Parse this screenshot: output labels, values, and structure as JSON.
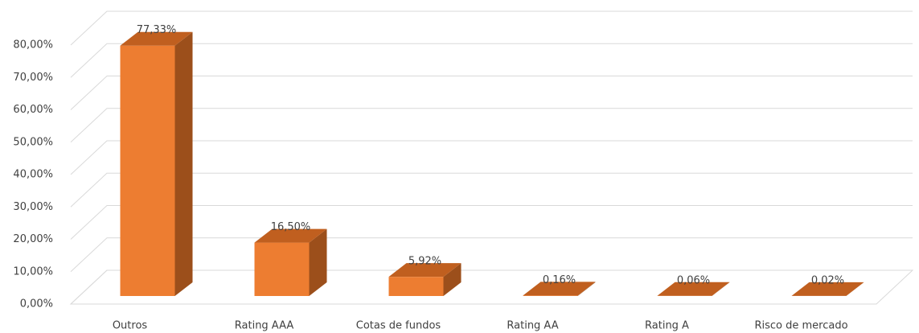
{
  "chart_data": {
    "type": "bar3d",
    "categories": [
      "Outros",
      "Rating AAA",
      "Cotas de fundos",
      "Rating AA",
      "Rating A",
      "Risco de mercado"
    ],
    "values": [
      77.33,
      16.5,
      5.92,
      0.16,
      0.06,
      0.02
    ],
    "value_labels": [
      "77,33%",
      "16,50%",
      "5,92%",
      "0,16%",
      "0,06%",
      "0,02%"
    ],
    "color": "#ED7D31",
    "ylim": [
      0,
      80
    ],
    "yticks": [
      {
        "value": 0,
        "label": "0,00%"
      },
      {
        "value": 10,
        "label": "10,00%"
      },
      {
        "value": 20,
        "label": "20,00%"
      },
      {
        "value": 30,
        "label": "30,00%"
      },
      {
        "value": 40,
        "label": "40,00%"
      },
      {
        "value": 50,
        "label": "50,00%"
      },
      {
        "value": 60,
        "label": "60,00%"
      },
      {
        "value": 70,
        "label": "70,00%"
      },
      {
        "value": 80,
        "label": "80,00%"
      }
    ],
    "grid": true
  }
}
